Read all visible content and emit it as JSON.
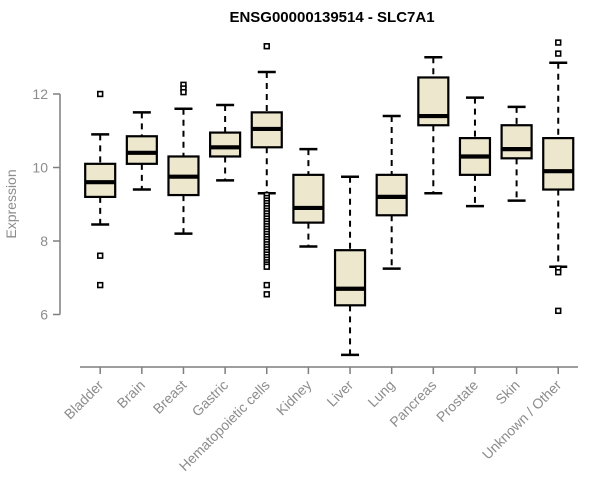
{
  "title": "ENSG00000139514 - SLC7A1",
  "colors": {
    "box_fill": "#ece7cd",
    "box_border": "#000000",
    "median": "#000000",
    "whisker": "#000000",
    "outlier_stroke": "#000000",
    "outlier_fill": "#ffffff",
    "axis_line": "#7f7f7f",
    "tick_label": "#8c8c8c",
    "title_color": "#000000",
    "background": "#ffffff"
  },
  "chart_data": {
    "type": "boxplot",
    "title": "ENSG00000139514 - SLC7A1",
    "xlabel": "",
    "ylabel": "Expression",
    "yticks": [
      6,
      8,
      10,
      12
    ],
    "ylim": [
      4.5,
      13.6
    ],
    "grid": false,
    "legend": "none",
    "categories": [
      "Bladder",
      "Brain",
      "Breast",
      "Gastric",
      "Hematopoietic cells",
      "Kidney",
      "Liver",
      "Lung",
      "Pancreas",
      "Prostate",
      "Skin",
      "Unknown / Other"
    ],
    "series": [
      {
        "name": "Bladder",
        "low": 8.45,
        "q1": 9.2,
        "median": 9.6,
        "q3": 10.1,
        "high": 10.9,
        "outliers": [
          12.0,
          7.6,
          6.8
        ]
      },
      {
        "name": "Brain",
        "low": 9.4,
        "q1": 10.1,
        "median": 10.4,
        "q3": 10.85,
        "high": 11.5,
        "outliers": []
      },
      {
        "name": "Breast",
        "low": 8.2,
        "q1": 9.25,
        "median": 9.75,
        "q3": 10.3,
        "high": 11.6,
        "outliers": [
          12.25,
          12.15,
          12.05
        ]
      },
      {
        "name": "Gastric",
        "low": 9.65,
        "q1": 10.3,
        "median": 10.55,
        "q3": 10.95,
        "high": 11.7,
        "outliers": []
      },
      {
        "name": "Hematopoietic cells",
        "low": 9.3,
        "q1": 10.55,
        "median": 11.05,
        "q3": 11.5,
        "high": 12.6,
        "outliers": [
          13.3,
          9.25,
          9.17,
          9.1,
          9.03,
          8.96,
          8.89,
          8.82,
          8.75,
          8.68,
          8.61,
          8.54,
          8.47,
          8.4,
          8.33,
          8.26,
          8.19,
          8.12,
          8.05,
          7.98,
          7.91,
          7.84,
          7.77,
          7.7,
          7.63,
          7.56,
          7.49,
          7.42,
          7.36,
          7.3,
          6.8,
          6.55
        ]
      },
      {
        "name": "Kidney",
        "low": 7.85,
        "q1": 8.5,
        "median": 8.9,
        "q3": 9.8,
        "high": 10.5,
        "outliers": []
      },
      {
        "name": "Liver",
        "low": 4.9,
        "q1": 6.25,
        "median": 6.7,
        "q3": 7.75,
        "high": 9.75,
        "outliers": []
      },
      {
        "name": "Lung",
        "low": 7.25,
        "q1": 8.7,
        "median": 9.2,
        "q3": 9.8,
        "high": 11.4,
        "outliers": []
      },
      {
        "name": "Pancreas",
        "low": 9.3,
        "q1": 11.15,
        "median": 11.4,
        "q3": 12.45,
        "high": 13.0,
        "outliers": []
      },
      {
        "name": "Prostate",
        "low": 8.95,
        "q1": 9.8,
        "median": 10.3,
        "q3": 10.8,
        "high": 11.9,
        "outliers": []
      },
      {
        "name": "Skin",
        "low": 9.1,
        "q1": 10.25,
        "median": 10.5,
        "q3": 11.15,
        "high": 11.65,
        "outliers": []
      },
      {
        "name": "Unknown / Other",
        "low": 7.3,
        "q1": 9.4,
        "median": 9.9,
        "q3": 10.8,
        "high": 12.85,
        "outliers": [
          13.4,
          13.1,
          7.25,
          7.15,
          6.1
        ]
      }
    ]
  }
}
